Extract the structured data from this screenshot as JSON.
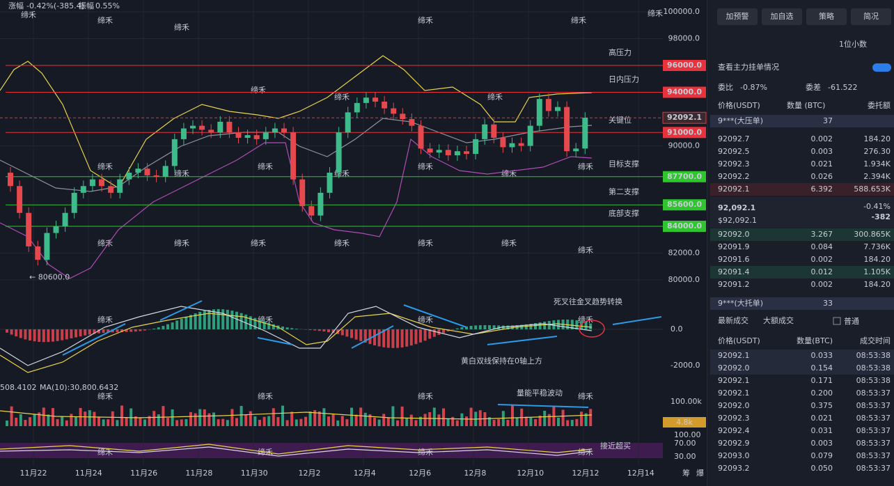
{
  "top_info": {
    "change_label": "涨幅",
    "change": "-0.42%(-385.4)",
    "amp_label": "振幅",
    "amp": "0.55%"
  },
  "price_axis": {
    "ylim": [
      80000,
      100000
    ],
    "yticks": [
      {
        "value": 100000,
        "label": "100000.0"
      },
      {
        "value": 98000,
        "label": "98000.0"
      },
      {
        "value": 90000,
        "label": "90000.0"
      },
      {
        "value": 82000,
        "label": "82000.0"
      },
      {
        "value": 80000,
        "label": "80000.0"
      }
    ]
  },
  "levels": [
    {
      "name": "高压力",
      "value": 96000,
      "label": "96000.0",
      "color": "#e8323c"
    },
    {
      "name": "日内压力",
      "value": 94000,
      "label": "94000.0",
      "color": "#e8323c"
    },
    {
      "name": "关键位",
      "value": 91000,
      "label": "91000.0",
      "color": "#e8323c"
    },
    {
      "name": "目标支撑",
      "value": 87700,
      "label": "87700.0",
      "color": "#2ec52e"
    },
    {
      "name": "第二支撑",
      "value": 85600,
      "label": "85600.0",
      "color": "#2ec52e"
    },
    {
      "name": "底部支撑",
      "value": 84000,
      "label": "84000.0",
      "color": "#2ec52e"
    }
  ],
  "current_price": {
    "value": 92092.1,
    "label": "92092.1"
  },
  "low_marker": {
    "value": 80600,
    "label": "← 80600.0"
  },
  "candles": {
    "open0": 88000,
    "closes": [
      87000,
      85000,
      82500,
      81500,
      83500,
      84000,
      85000,
      86500,
      87000,
      87500,
      87000,
      86500,
      87500,
      88000,
      88300,
      87800,
      87700,
      88500,
      90500,
      91300,
      91500,
      91200,
      91000,
      91800,
      91000,
      90600,
      90800,
      90500,
      91000,
      91300,
      91000,
      87500,
      85500,
      84800,
      86500,
      88000,
      91000,
      92500,
      93200,
      93600,
      93300,
      92800,
      92400,
      92000,
      91500,
      89800,
      89500,
      89700,
      89300,
      89600,
      89400,
      90500,
      91600,
      90600,
      89900,
      90200,
      90000,
      91500,
      93500,
      92600,
      92900,
      89600,
      89800,
      92100
    ]
  },
  "dates": [
    "11月22",
    "11月24",
    "11月26",
    "11月28",
    "11月30",
    "12月2",
    "12月4",
    "12月6",
    "12月8",
    "12月10",
    "12月12",
    "12月14"
  ],
  "macd": {
    "ticks": [
      "0.0",
      "-2000.0"
    ],
    "note_top": "死叉往金叉趋势转换",
    "note_bottom": "黄白双线保持在0轴上方"
  },
  "volume": {
    "left": "508.4102",
    "ma": "MA(10):30,800.6432",
    "tick": "100.00k",
    "current": "4.8k",
    "note": "量能平稳波动"
  },
  "rsi": {
    "ticks": [
      "100.00",
      "70.00",
      "30.00"
    ],
    "note": "接近超买"
  },
  "corner": [
    "筹",
    "爆"
  ],
  "watermark": "缔禾",
  "panel": {
    "buttons": [
      "加预警",
      "加自选",
      "策略",
      "简况"
    ],
    "decimals": "1位小数",
    "main_orders": "查看主力挂单情况",
    "ratio_label": "委比",
    "ratio": "-0.87%",
    "diff_label": "委差",
    "diff": "-61.522",
    "book_header": [
      "价格(USDT)",
      "数量 (BTC)",
      "委托额"
    ],
    "big_ask": {
      "name": "9***(大压单)",
      "qty": "37"
    },
    "asks": [
      [
        "92092.7",
        "0.002",
        "184.20"
      ],
      [
        "92092.5",
        "0.003",
        "276.30"
      ],
      [
        "92092.3",
        "0.021",
        "1.934K"
      ],
      [
        "92092.2",
        "0.026",
        "2.394K"
      ],
      [
        "92092.1",
        "6.392",
        "588.653K"
      ]
    ],
    "last": {
      "price": "92,092.1",
      "usd": "$92,092.1",
      "pct": "-0.41%",
      "chg": "-382"
    },
    "bids": [
      [
        "92092.0",
        "3.267",
        "300.865K"
      ],
      [
        "92091.9",
        "0.084",
        "7.736K"
      ],
      [
        "92091.6",
        "0.002",
        "184.20"
      ],
      [
        "92091.4",
        "0.012",
        "1.105K"
      ],
      [
        "92091.2",
        "0.002",
        "184.20"
      ]
    ],
    "big_bid": {
      "name": "9***(大托单)",
      "qty": "33"
    },
    "tabs": [
      "最新成交",
      "大额成交",
      "普通"
    ],
    "trade_header": [
      "价格(USDT)",
      "数量(BTC)",
      "成交时间"
    ],
    "trades": [
      [
        "92092.1",
        "0.033",
        "08:53:38"
      ],
      [
        "92092.0",
        "0.154",
        "08:53:38"
      ],
      [
        "92092.1",
        "0.171",
        "08:53:38"
      ],
      [
        "92092.1",
        "0.200",
        "08:53:37"
      ],
      [
        "92092.0",
        "0.375",
        "08:53:37"
      ],
      [
        "92092.3",
        "0.021",
        "08:53:37"
      ],
      [
        "92092.4",
        "0.031",
        "08:53:37"
      ],
      [
        "92092.9",
        "0.003",
        "08:53:37"
      ],
      [
        "92093.0",
        "0.079",
        "08:53:37"
      ],
      [
        "92093.2",
        "0.050",
        "08:53:37"
      ]
    ],
    "trade_sides": [
      "buy",
      "sell",
      "buy",
      "buy",
      "sell",
      "sell",
      "sell",
      "sell",
      "sell",
      "sell"
    ]
  }
}
